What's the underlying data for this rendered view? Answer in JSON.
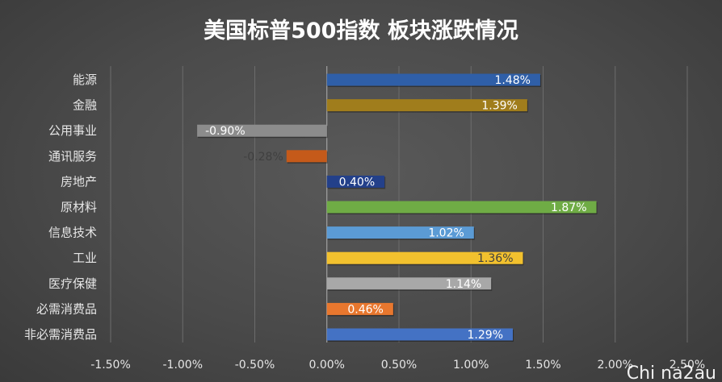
{
  "chart_data": {
    "type": "bar",
    "orientation": "horizontal",
    "title": "美国标普500指数 板块涨跌情况",
    "categories": [
      "能源",
      "金融",
      "公用事业",
      "通讯服务",
      "房地产",
      "原材料",
      "信息技术",
      "工业",
      "医疗保健",
      "必需消费品",
      "非必需消费品"
    ],
    "values": [
      1.48,
      1.39,
      -0.9,
      -0.28,
      0.4,
      1.87,
      1.02,
      1.36,
      1.14,
      0.46,
      1.29
    ],
    "value_labels": [
      "1.48%",
      "1.39%",
      "-0.90%",
      "-0.28%",
      "0.40%",
      "1.87%",
      "1.02%",
      "1.36%",
      "1.14%",
      "0.46%",
      "1.29%"
    ],
    "colors": [
      "#2f5fa8",
      "#a07d1c",
      "#8c8c8c",
      "#c55a1a",
      "#23408a",
      "#6fac45",
      "#5b9bd5",
      "#f2c12e",
      "#a8a8a8",
      "#e8772e",
      "#4472c4"
    ],
    "xlim": [
      -1.5,
      2.5
    ],
    "xticks": [
      -1.5,
      -1.0,
      -0.5,
      0.0,
      0.5,
      1.0,
      1.5,
      2.0,
      2.5
    ],
    "xtick_labels": [
      "-1.50%",
      "-1.00%",
      "-0.50%",
      "0.00%",
      "0.50%",
      "1.00%",
      "1.50%",
      "2.00%",
      "2.50%"
    ],
    "grid": true,
    "legend": "none"
  },
  "watermark": "Chi na2au"
}
